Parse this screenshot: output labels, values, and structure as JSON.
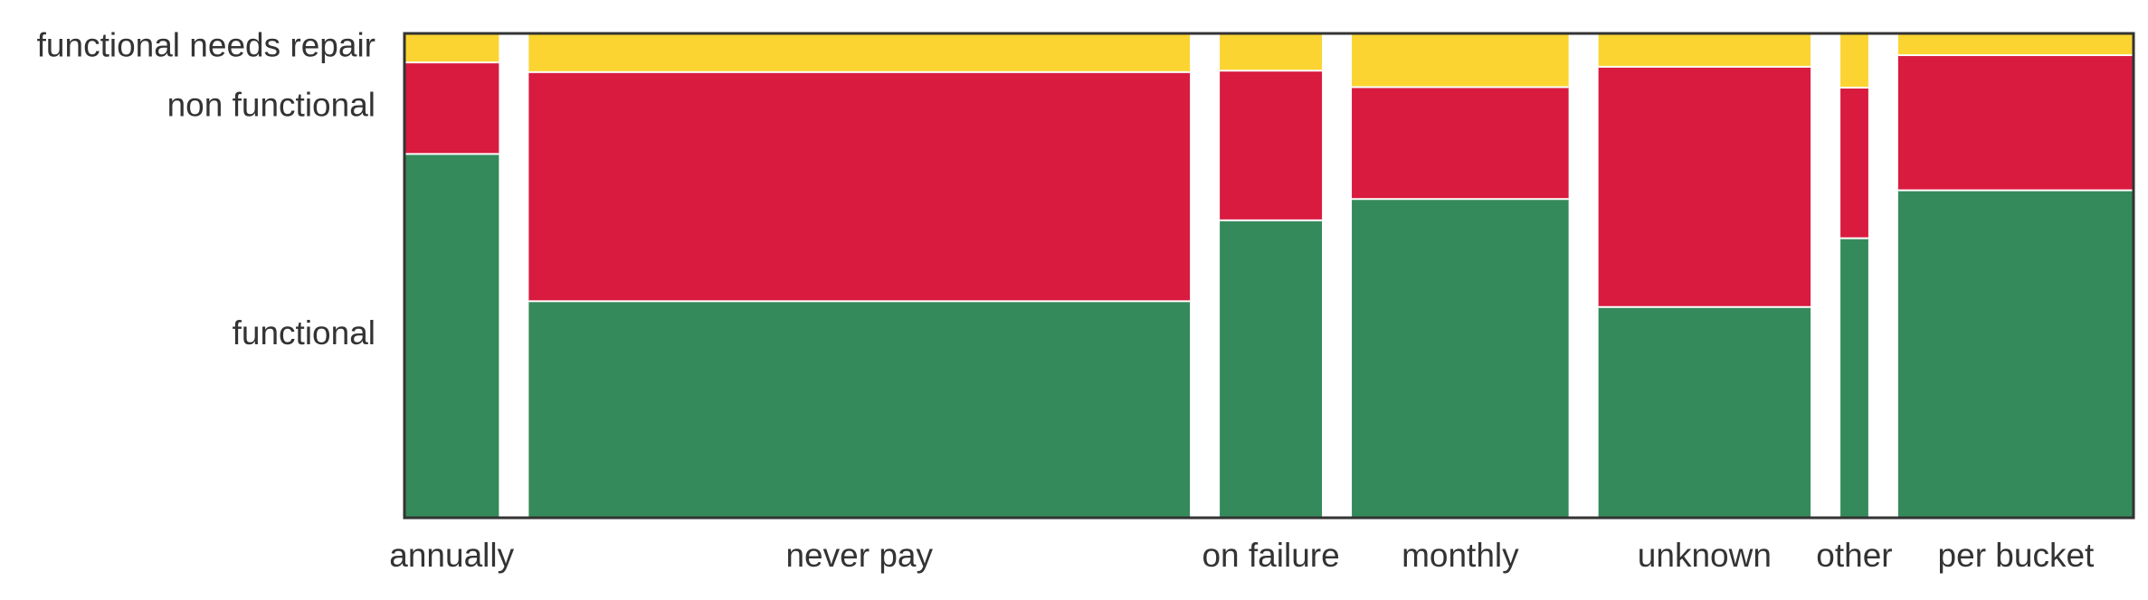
{
  "chart_data": {
    "type": "mosaic",
    "title": "",
    "xlabel": "",
    "ylabel": "",
    "categories": [
      "annually",
      "never pay",
      "on failure",
      "monthly",
      "unknown",
      "other",
      "per bucket"
    ],
    "category_shares": [
      0.061,
      0.427,
      0.066,
      0.14,
      0.137,
      0.018,
      0.152
    ],
    "series": [
      {
        "name": "functional",
        "color": "#358a5b",
        "values": [
          0.753,
          0.449,
          0.616,
          0.66,
          0.437,
          0.579,
          0.678
        ]
      },
      {
        "name": "non functional",
        "color": "#d81b3f",
        "values": [
          0.189,
          0.473,
          0.309,
          0.231,
          0.496,
          0.311,
          0.279
        ]
      },
      {
        "name": "functional needs repair",
        "color": "#fbd431",
        "values": [
          0.058,
          0.078,
          0.075,
          0.109,
          0.067,
          0.11,
          0.043
        ]
      }
    ],
    "y_tick_labels": [
      "functional",
      "non functional",
      "functional needs repair"
    ],
    "grid": false,
    "legend": "none"
  }
}
